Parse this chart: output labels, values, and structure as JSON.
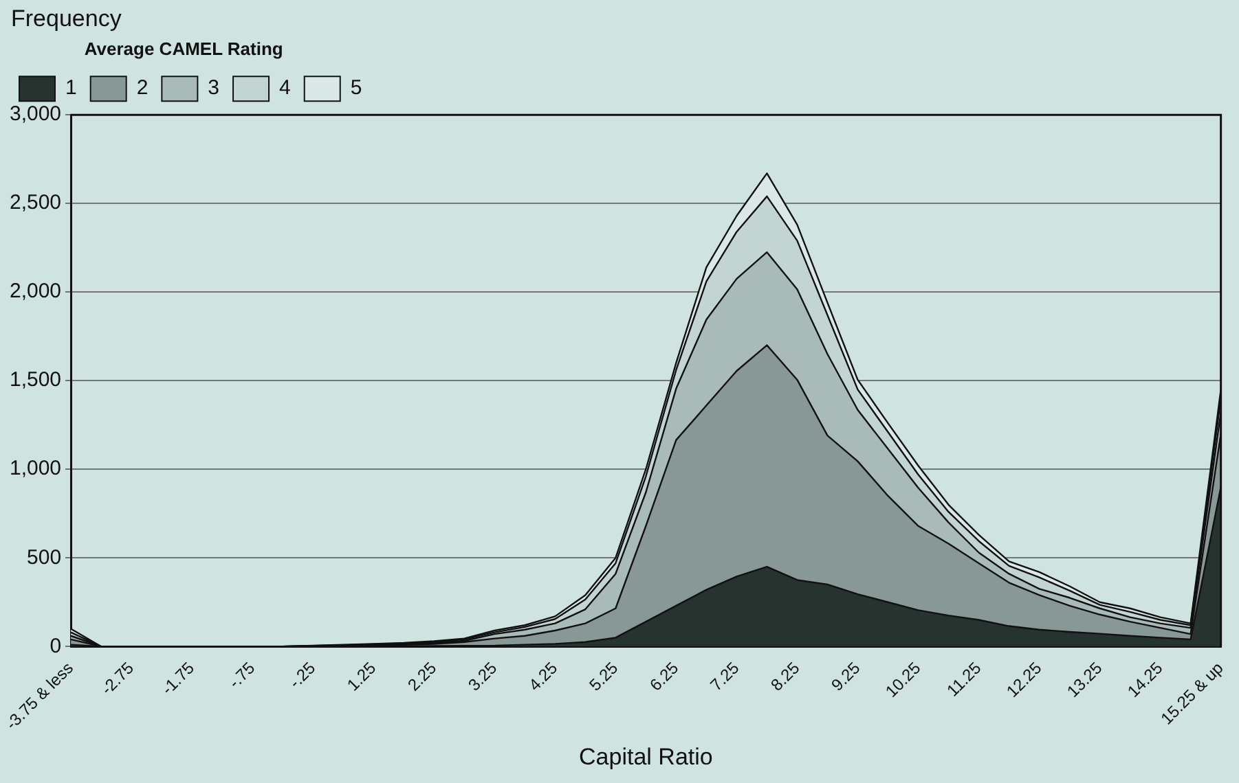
{
  "chart_data": {
    "type": "area",
    "stacked": true,
    "ylabel": "Frequency",
    "xlabel": "Capital Ratio",
    "legend_title": "Average CAMEL Rating",
    "legend": "top left",
    "grid": "y",
    "categories": [
      "-3.75 & less",
      null,
      "-2.75",
      null,
      "-1.75",
      null,
      "-.75",
      null,
      "-.25",
      null,
      "1.25",
      null,
      "2.25",
      null,
      "3.25",
      null,
      "4.25",
      null,
      "5.25",
      null,
      "6.25",
      null,
      "7.25",
      null,
      "8.25",
      null,
      "9.25",
      null,
      "10.25",
      null,
      "11.25",
      null,
      "12.25",
      null,
      "13.25",
      null,
      "14.25",
      null,
      "15.25 & up"
    ],
    "ylim": [
      0,
      3000
    ],
    "yticks": [
      {
        "value": 0,
        "label": "0"
      },
      {
        "value": 500,
        "label": "500"
      },
      {
        "value": 1000,
        "label": "1,000"
      },
      {
        "value": 1500,
        "label": "1,500"
      },
      {
        "value": 2000,
        "label": "2,000"
      },
      {
        "value": 2500,
        "label": "2,500"
      },
      {
        "value": 3000,
        "label": "3,000"
      }
    ],
    "series": [
      {
        "name": "1",
        "color": "#27332f",
        "values": [
          10,
          0,
          0,
          0,
          0,
          0,
          0,
          0,
          0,
          0,
          1,
          2,
          3,
          4,
          5,
          10,
          15,
          25,
          50,
          140,
          230,
          320,
          395,
          450,
          375,
          350,
          295,
          250,
          205,
          175,
          150,
          115,
          95,
          82,
          72,
          60,
          50,
          40,
          900
        ]
      },
      {
        "name": "2",
        "color": "#889896",
        "values": [
          30,
          0,
          0,
          0,
          0,
          0,
          0,
          0,
          2,
          4,
          5,
          7,
          11,
          21,
          40,
          50,
          75,
          105,
          165,
          540,
          935,
          1040,
          1160,
          1250,
          1130,
          840,
          750,
          600,
          475,
          405,
          320,
          245,
          195,
          148,
          108,
          80,
          55,
          30,
          300
        ]
      },
      {
        "name": "3",
        "color": "#a9bbb8",
        "values": [
          20,
          0,
          0,
          0,
          0,
          0,
          0,
          0,
          1,
          2,
          4,
          4,
          6,
          7,
          25,
          35,
          40,
          80,
          195,
          190,
          290,
          485,
          520,
          525,
          510,
          460,
          290,
          265,
          215,
          120,
          60,
          50,
          35,
          45,
          35,
          25,
          25,
          35,
          120
        ]
      },
      {
        "name": "4",
        "color": "#c3d5d2",
        "values": [
          20,
          0,
          0,
          0,
          0,
          0,
          0,
          0,
          1,
          2,
          3,
          4,
          5,
          8,
          10,
          15,
          25,
          55,
          60,
          90,
          105,
          215,
          265,
          315,
          275,
          220,
          115,
          95,
          75,
          60,
          65,
          45,
          65,
          40,
          20,
          30,
          20,
          15,
          80
        ]
      },
      {
        "name": "5",
        "color": "#dbe9e6",
        "values": [
          20,
          0,
          0,
          0,
          0,
          0,
          0,
          0,
          1,
          2,
          2,
          3,
          5,
          5,
          10,
          10,
          15,
          25,
          30,
          40,
          40,
          80,
          90,
          130,
          90,
          70,
          55,
          50,
          50,
          40,
          35,
          25,
          30,
          25,
          15,
          20,
          15,
          10,
          50
        ]
      }
    ]
  }
}
